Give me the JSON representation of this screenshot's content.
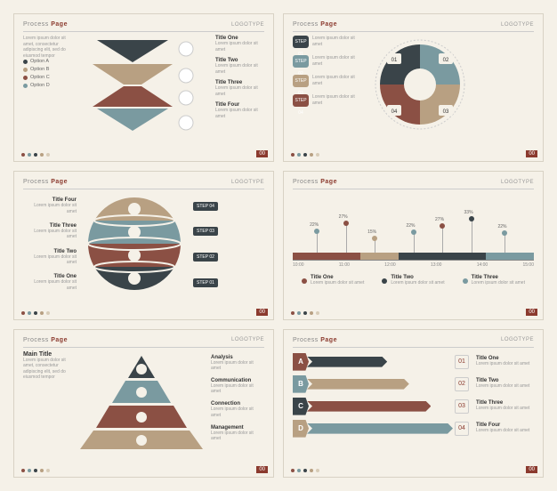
{
  "common": {
    "header_prefix": "Process",
    "header_accent": "Page",
    "logotype": "LOGOTYPE",
    "page_num": "00",
    "lorem_short": "Lorem ipsum dolor sit amet, consectetur adipiscing elit, sed do eiusmod tempor",
    "lorem_tiny": "Lorem ipsum dolor sit amet",
    "palette": {
      "rust": "#8b5044",
      "teal": "#7a9aa0",
      "charcoal": "#3a4449",
      "tan": "#b8a082",
      "cream": "#d8ccb8",
      "bg": "#f5f1e8"
    },
    "dot_colors": [
      "#8b5044",
      "#7a9aa0",
      "#3a4449",
      "#b8a082",
      "#d8ccb8"
    ]
  },
  "slide1": {
    "options": [
      {
        "label": "Option A",
        "color": "#3a4449"
      },
      {
        "label": "Option B",
        "color": "#b8a082"
      },
      {
        "label": "Option C",
        "color": "#8b5044"
      },
      {
        "label": "Option D",
        "color": "#7a9aa0"
      }
    ],
    "titles": [
      "Title One",
      "Title Two",
      "Title Three",
      "Title Four"
    ],
    "triangle_colors": [
      "#3a4449",
      "#b8a082",
      "#8b5044",
      "#7a9aa0"
    ]
  },
  "slide2": {
    "steps": [
      {
        "badge": "STEP 01",
        "color": "#3a4449"
      },
      {
        "badge": "STEP 02",
        "color": "#7a9aa0"
      },
      {
        "badge": "STEP 03",
        "color": "#b8a082"
      },
      {
        "badge": "STEP 04",
        "color": "#8b5044"
      }
    ],
    "quad_labels": [
      "01",
      "02",
      "03",
      "04"
    ],
    "quad_colors": [
      "#3a4449",
      "#7a9aa0",
      "#b8a082",
      "#8b5044"
    ]
  },
  "slide3": {
    "titles": [
      "Title Four",
      "Title Three",
      "Title Two",
      "Title One"
    ],
    "steps": [
      "STEP 04",
      "STEP 03",
      "STEP 02",
      "STEP 01"
    ],
    "band_colors": [
      "#b8a082",
      "#7a9aa0",
      "#8b5044",
      "#3a4449"
    ]
  },
  "slide4": {
    "times": [
      "10:00",
      "11:00",
      "12:00",
      "13:00",
      "14:00",
      "15:00"
    ],
    "points": [
      {
        "x": 0.1,
        "pct": "22%",
        "h": 0.45,
        "color": "#7a9aa0"
      },
      {
        "x": 0.22,
        "pct": "27%",
        "h": 0.6,
        "color": "#8b5044"
      },
      {
        "x": 0.34,
        "pct": "15%",
        "h": 0.3,
        "color": "#b8a082"
      },
      {
        "x": 0.5,
        "pct": "22%",
        "h": 0.42,
        "color": "#7a9aa0"
      },
      {
        "x": 0.62,
        "pct": "27%",
        "h": 0.56,
        "color": "#8b5044"
      },
      {
        "x": 0.74,
        "pct": "33%",
        "h": 0.7,
        "color": "#3a4449"
      },
      {
        "x": 0.88,
        "pct": "22%",
        "h": 0.4,
        "color": "#7a9aa0"
      }
    ],
    "band_segments": [
      {
        "start": 0.0,
        "end": 0.28,
        "color": "#8b5044"
      },
      {
        "start": 0.28,
        "end": 0.44,
        "color": "#b8a082"
      },
      {
        "start": 0.44,
        "end": 0.8,
        "color": "#3a4449"
      },
      {
        "start": 0.8,
        "end": 1.0,
        "color": "#7a9aa0"
      }
    ],
    "legend": [
      {
        "label": "Title One",
        "color": "#8b5044"
      },
      {
        "label": "Title Two",
        "color": "#3a4449"
      },
      {
        "label": "Title Three",
        "color": "#7a9aa0"
      }
    ]
  },
  "slide5": {
    "main_title": "Main Title",
    "rows": [
      {
        "label": "Analysis",
        "color": "#3a4449"
      },
      {
        "label": "Communication",
        "color": "#7a9aa0"
      },
      {
        "label": "Connection",
        "color": "#8b5044"
      },
      {
        "label": "Management",
        "color": "#b8a082"
      }
    ]
  },
  "slide6": {
    "rows": [
      {
        "letter": "A",
        "letter_color": "#8b5044",
        "bar_color": "#3a4449",
        "width": 0.55,
        "num": "01",
        "title": "Title One"
      },
      {
        "letter": "B",
        "letter_color": "#7a9aa0",
        "bar_color": "#b8a082",
        "width": 0.7,
        "num": "02",
        "title": "Title Two"
      },
      {
        "letter": "C",
        "letter_color": "#3a4449",
        "bar_color": "#8b5044",
        "width": 0.85,
        "num": "03",
        "title": "Title Three"
      },
      {
        "letter": "D",
        "letter_color": "#b8a082",
        "bar_color": "#7a9aa0",
        "width": 1.0,
        "num": "04",
        "title": "Title Four"
      }
    ]
  }
}
